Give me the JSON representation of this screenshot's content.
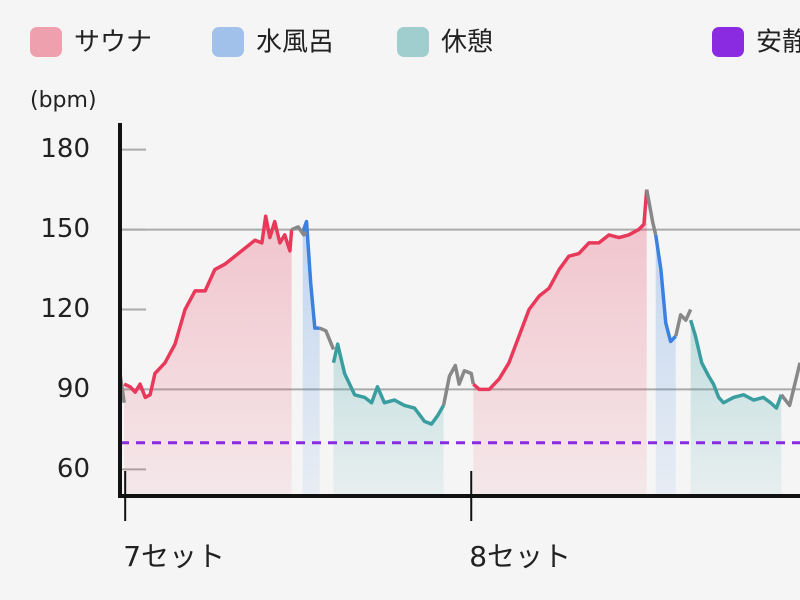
{
  "chart_data": {
    "type": "line",
    "y_label": "(bpm)",
    "ylim": [
      50,
      190
    ],
    "yticks": [
      60,
      90,
      120,
      150,
      180
    ],
    "grid_lines": [
      90,
      150
    ],
    "xlim": [
      -1.5,
      195
    ],
    "xticks": [
      {
        "value": 0,
        "label": "7セット"
      },
      {
        "value": 100,
        "label": "8セット"
      }
    ],
    "reference_line": {
      "name": "安静",
      "value": 70,
      "color": "#8a2be2"
    },
    "series": [
      {
        "name": "サウナ",
        "color": "#e8395a",
        "x": [
          -0.3,
          1.4,
          2.9,
          4.3,
          5.8,
          7.2,
          8.6,
          11.5,
          14.4,
          17.3,
          20.2,
          23.1,
          25.9,
          28.8,
          31.7,
          34.6,
          37.5,
          39.5,
          40.6,
          41.8,
          43.2,
          44.7,
          46.1,
          47.6,
          48.1,
          null,
          100.6,
          102.3,
          105.2,
          108.1,
          110.9,
          113.8,
          116.7,
          119.6,
          122.5,
          125.4,
          128.2,
          131.1,
          134.0,
          136.9,
          139.8,
          142.7,
          145.5,
          148.4,
          149.9,
          150.7
        ],
        "values": [
          92,
          91,
          89,
          92,
          87,
          88,
          96,
          100,
          107,
          120,
          127,
          127,
          135,
          137,
          140,
          143,
          146,
          145,
          155,
          147,
          153,
          145,
          148,
          142,
          150,
          null,
          92,
          90,
          90,
          94,
          100,
          110,
          120,
          125,
          128,
          135,
          140,
          141,
          145,
          145,
          148,
          147,
          148,
          150,
          152,
          165
        ]
      },
      {
        "name": "水風呂",
        "color": "#3b82e0",
        "x": [
          51.3,
          52.4,
          53.6,
          54.8,
          56.2,
          null,
          153.3,
          154.8,
          156.2,
          157.6,
          159.1
        ],
        "values": [
          149,
          153,
          130,
          113,
          113,
          null,
          148,
          135,
          115,
          108,
          110
        ]
      },
      {
        "name": "休憩",
        "color": "#3a9ea0",
        "x": [
          60.2,
          61.4,
          63.4,
          66.3,
          69.2,
          71.2,
          72.9,
          74.9,
          77.8,
          80.7,
          83.6,
          86.5,
          88.5,
          90.2,
          92.0,
          null,
          163.4,
          164.8,
          166.6,
          168.6,
          170.0,
          171.5,
          172.9,
          175.8,
          178.7,
          181.6,
          184.4,
          186.5,
          188.2,
          189.6
        ],
        "values": [
          100,
          107,
          96,
          88,
          87,
          85,
          91,
          85,
          86,
          84,
          83,
          78,
          77,
          80,
          84,
          null,
          116,
          110,
          100,
          95,
          92,
          87,
          85,
          87,
          88,
          86,
          87,
          85,
          83,
          88
        ]
      },
      {
        "color": "#888888",
        "x": [
          -1.5,
          -0.3,
          null,
          48.1,
          50.0,
          51.6,
          52.3,
          null,
          56.2,
          58.0,
          60.2,
          null,
          92.0,
          93.7,
          95.4,
          96.5,
          98.0,
          100.0,
          100.6,
          null,
          150.7,
          152.4,
          153.3,
          null,
          159.1,
          160.5,
          162.0,
          163.4,
          null,
          189.6,
          192.0,
          195.0
        ],
        "values": [
          96,
          85,
          null,
          150,
          151,
          148,
          149,
          null,
          113,
          112,
          105,
          null,
          84,
          95,
          99,
          92,
          97,
          96,
          92,
          null,
          165,
          153,
          148,
          null,
          110,
          118,
          116,
          120,
          null,
          88,
          84,
          100
        ]
      }
    ]
  }
}
